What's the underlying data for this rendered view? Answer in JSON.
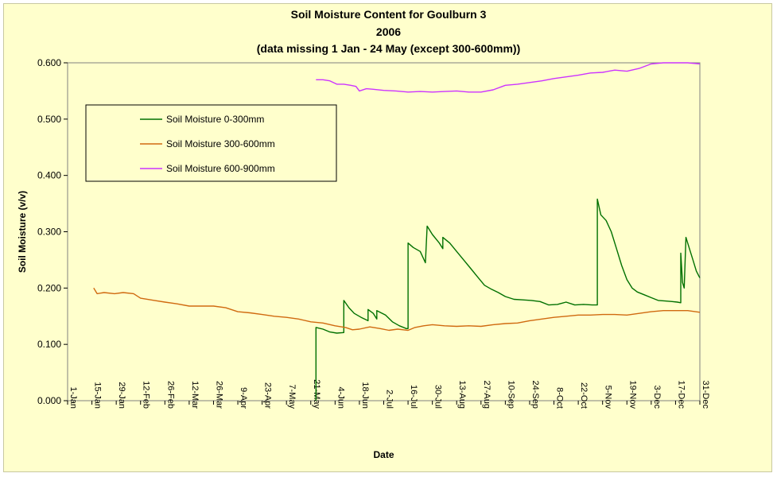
{
  "chart_data": {
    "type": "line",
    "title": [
      "Soil Moisture Content for Goulburn 3",
      "2006",
      "(data missing 1 Jan - 24 May (except 300-600mm))"
    ],
    "xlabel": "Date",
    "ylabel": "Soil Moisture (v/v)",
    "ylim": [
      0,
      0.6
    ],
    "xlim": [
      "1-Jan",
      "31-Dec"
    ],
    "yticks": [
      "0.000",
      "0.100",
      "0.200",
      "0.300",
      "0.400",
      "0.500",
      "0.600"
    ],
    "xticks": [
      "1-Jan",
      "15-Jan",
      "29-Jan",
      "12-Feb",
      "26-Feb",
      "12-Mar",
      "26-Mar",
      "9-Apr",
      "23-Apr",
      "7-May",
      "21-May",
      "4-Jun",
      "18-Jun",
      "2-Jul",
      "16-Jul",
      "30-Jul",
      "13-Aug",
      "27-Aug",
      "10-Sep",
      "24-Sep",
      "8-Oct",
      "22-Oct",
      "5-Nov",
      "19-Nov",
      "3-Dec",
      "17-Dec",
      "31-Dec"
    ],
    "legend_position": "top-left",
    "grid": {
      "horizontal": false,
      "vertical": false
    },
    "series": [
      {
        "name": "Soil Moisture 0-300mm",
        "color": "#007000",
        "points": [
          [
            "24-May",
            0.0
          ],
          [
            "24-May",
            0.13
          ],
          [
            "28-May",
            0.127
          ],
          [
            "1-Jun",
            0.122
          ],
          [
            "5-Jun",
            0.12
          ],
          [
            "9-Jun",
            0.121
          ],
          [
            "9-Jun",
            0.178
          ],
          [
            "12-Jun",
            0.165
          ],
          [
            "15-Jun",
            0.155
          ],
          [
            "19-Jun",
            0.148
          ],
          [
            "23-Jun",
            0.142
          ],
          [
            "23-Jun",
            0.162
          ],
          [
            "26-Jun",
            0.155
          ],
          [
            "28-Jun",
            0.145
          ],
          [
            "28-Jun",
            0.16
          ],
          [
            "3-Jul",
            0.152
          ],
          [
            "7-Jul",
            0.14
          ],
          [
            "11-Jul",
            0.133
          ],
          [
            "15-Jul",
            0.128
          ],
          [
            "16-Jul",
            0.128
          ],
          [
            "16-Jul",
            0.28
          ],
          [
            "19-Jul",
            0.272
          ],
          [
            "23-Jul",
            0.265
          ],
          [
            "26-Jul",
            0.245
          ],
          [
            "27-Jul",
            0.31
          ],
          [
            "30-Jul",
            0.295
          ],
          [
            "3-Aug",
            0.28
          ],
          [
            "5-Aug",
            0.27
          ],
          [
            "5-Aug",
            0.29
          ],
          [
            "9-Aug",
            0.28
          ],
          [
            "13-Aug",
            0.265
          ],
          [
            "17-Aug",
            0.25
          ],
          [
            "21-Aug",
            0.235
          ],
          [
            "25-Aug",
            0.22
          ],
          [
            "29-Aug",
            0.205
          ],
          [
            "2-Sep",
            0.198
          ],
          [
            "6-Sep",
            0.192
          ],
          [
            "10-Sep",
            0.185
          ],
          [
            "15-Sep",
            0.18
          ],
          [
            "20-Sep",
            0.179
          ],
          [
            "25-Sep",
            0.178
          ],
          [
            "30-Sep",
            0.176
          ],
          [
            "5-Oct",
            0.17
          ],
          [
            "10-Oct",
            0.171
          ],
          [
            "15-Oct",
            0.175
          ],
          [
            "20-Oct",
            0.17
          ],
          [
            "25-Oct",
            0.171
          ],
          [
            "30-Oct",
            0.17
          ],
          [
            "2-Nov",
            0.17
          ],
          [
            "2-Nov",
            0.358
          ],
          [
            "4-Nov",
            0.33
          ],
          [
            "7-Nov",
            0.32
          ],
          [
            "10-Nov",
            0.3
          ],
          [
            "13-Nov",
            0.27
          ],
          [
            "16-Nov",
            0.24
          ],
          [
            "19-Nov",
            0.215
          ],
          [
            "22-Nov",
            0.2
          ],
          [
            "25-Nov",
            0.193
          ],
          [
            "29-Nov",
            0.188
          ],
          [
            "3-Dec",
            0.183
          ],
          [
            "7-Dec",
            0.178
          ],
          [
            "11-Dec",
            0.177
          ],
          [
            "15-Dec",
            0.176
          ],
          [
            "18-Dec",
            0.175
          ],
          [
            "20-Dec",
            0.174
          ],
          [
            "20-Dec",
            0.262
          ],
          [
            "21-Dec",
            0.21
          ],
          [
            "22-Dec",
            0.2
          ],
          [
            "23-Dec",
            0.29
          ],
          [
            "25-Dec",
            0.27
          ],
          [
            "27-Dec",
            0.25
          ],
          [
            "29-Dec",
            0.23
          ],
          [
            "31-Dec",
            0.218
          ]
        ]
      },
      {
        "name": "Soil Moisture 300-600mm",
        "color": "#d06a10",
        "points": [
          [
            "16-Jan",
            0.2
          ],
          [
            "18-Jan",
            0.19
          ],
          [
            "22-Jan",
            0.192
          ],
          [
            "28-Jan",
            0.19
          ],
          [
            "2-Feb",
            0.192
          ],
          [
            "8-Feb",
            0.19
          ],
          [
            "12-Feb",
            0.182
          ],
          [
            "20-Feb",
            0.178
          ],
          [
            "26-Feb",
            0.175
          ],
          [
            "5-Mar",
            0.172
          ],
          [
            "12-Mar",
            0.168
          ],
          [
            "19-Mar",
            0.168
          ],
          [
            "26-Mar",
            0.168
          ],
          [
            "2-Apr",
            0.165
          ],
          [
            "9-Apr",
            0.158
          ],
          [
            "16-Apr",
            0.156
          ],
          [
            "23-Apr",
            0.153
          ],
          [
            "30-Apr",
            0.15
          ],
          [
            "7-May",
            0.148
          ],
          [
            "14-May",
            0.145
          ],
          [
            "21-May",
            0.14
          ],
          [
            "28-May",
            0.138
          ],
          [
            "4-Jun",
            0.133
          ],
          [
            "10-Jun",
            0.13
          ],
          [
            "14-Jun",
            0.126
          ],
          [
            "18-Jun",
            0.127
          ],
          [
            "24-Jun",
            0.131
          ],
          [
            "30-Jun",
            0.128
          ],
          [
            "5-Jul",
            0.125
          ],
          [
            "10-Jul",
            0.127
          ],
          [
            "16-Jul",
            0.125
          ],
          [
            "20-Jul",
            0.13
          ],
          [
            "25-Jul",
            0.133
          ],
          [
            "30-Jul",
            0.135
          ],
          [
            "6-Aug",
            0.133
          ],
          [
            "13-Aug",
            0.132
          ],
          [
            "20-Aug",
            0.133
          ],
          [
            "27-Aug",
            0.132
          ],
          [
            "3-Sep",
            0.135
          ],
          [
            "10-Sep",
            0.137
          ],
          [
            "17-Sep",
            0.138
          ],
          [
            "24-Sep",
            0.142
          ],
          [
            "1-Oct",
            0.145
          ],
          [
            "8-Oct",
            0.148
          ],
          [
            "15-Oct",
            0.15
          ],
          [
            "22-Oct",
            0.152
          ],
          [
            "29-Oct",
            0.152
          ],
          [
            "5-Nov",
            0.153
          ],
          [
            "12-Nov",
            0.153
          ],
          [
            "19-Nov",
            0.152
          ],
          [
            "26-Nov",
            0.155
          ],
          [
            "3-Dec",
            0.158
          ],
          [
            "10-Dec",
            0.16
          ],
          [
            "17-Dec",
            0.16
          ],
          [
            "24-Dec",
            0.16
          ],
          [
            "31-Dec",
            0.157
          ]
        ]
      },
      {
        "name": "Soil Moisture 600-900mm",
        "color": "#cc33ff",
        "points": [
          [
            "24-May",
            0.57
          ],
          [
            "28-May",
            0.57
          ],
          [
            "1-Jun",
            0.568
          ],
          [
            "5-Jun",
            0.562
          ],
          [
            "9-Jun",
            0.562
          ],
          [
            "13-Jun",
            0.56
          ],
          [
            "16-Jun",
            0.558
          ],
          [
            "18-Jun",
            0.55
          ],
          [
            "22-Jun",
            0.554
          ],
          [
            "26-Jun",
            0.553
          ],
          [
            "2-Jul",
            0.551
          ],
          [
            "9-Jul",
            0.55
          ],
          [
            "16-Jul",
            0.548
          ],
          [
            "23-Jul",
            0.549
          ],
          [
            "30-Jul",
            0.548
          ],
          [
            "6-Aug",
            0.549
          ],
          [
            "13-Aug",
            0.55
          ],
          [
            "20-Aug",
            0.548
          ],
          [
            "27-Aug",
            0.548
          ],
          [
            "3-Sep",
            0.552
          ],
          [
            "10-Sep",
            0.56
          ],
          [
            "17-Sep",
            0.562
          ],
          [
            "24-Sep",
            0.565
          ],
          [
            "1-Oct",
            0.568
          ],
          [
            "8-Oct",
            0.572
          ],
          [
            "15-Oct",
            0.575
          ],
          [
            "22-Oct",
            0.578
          ],
          [
            "29-Oct",
            0.582
          ],
          [
            "5-Nov",
            0.583
          ],
          [
            "12-Nov",
            0.587
          ],
          [
            "19-Nov",
            0.585
          ],
          [
            "26-Nov",
            0.59
          ],
          [
            "3-Dec",
            0.598
          ],
          [
            "10-Dec",
            0.6
          ],
          [
            "17-Dec",
            0.6
          ],
          [
            "24-Dec",
            0.6
          ],
          [
            "31-Dec",
            0.598
          ]
        ]
      }
    ]
  }
}
